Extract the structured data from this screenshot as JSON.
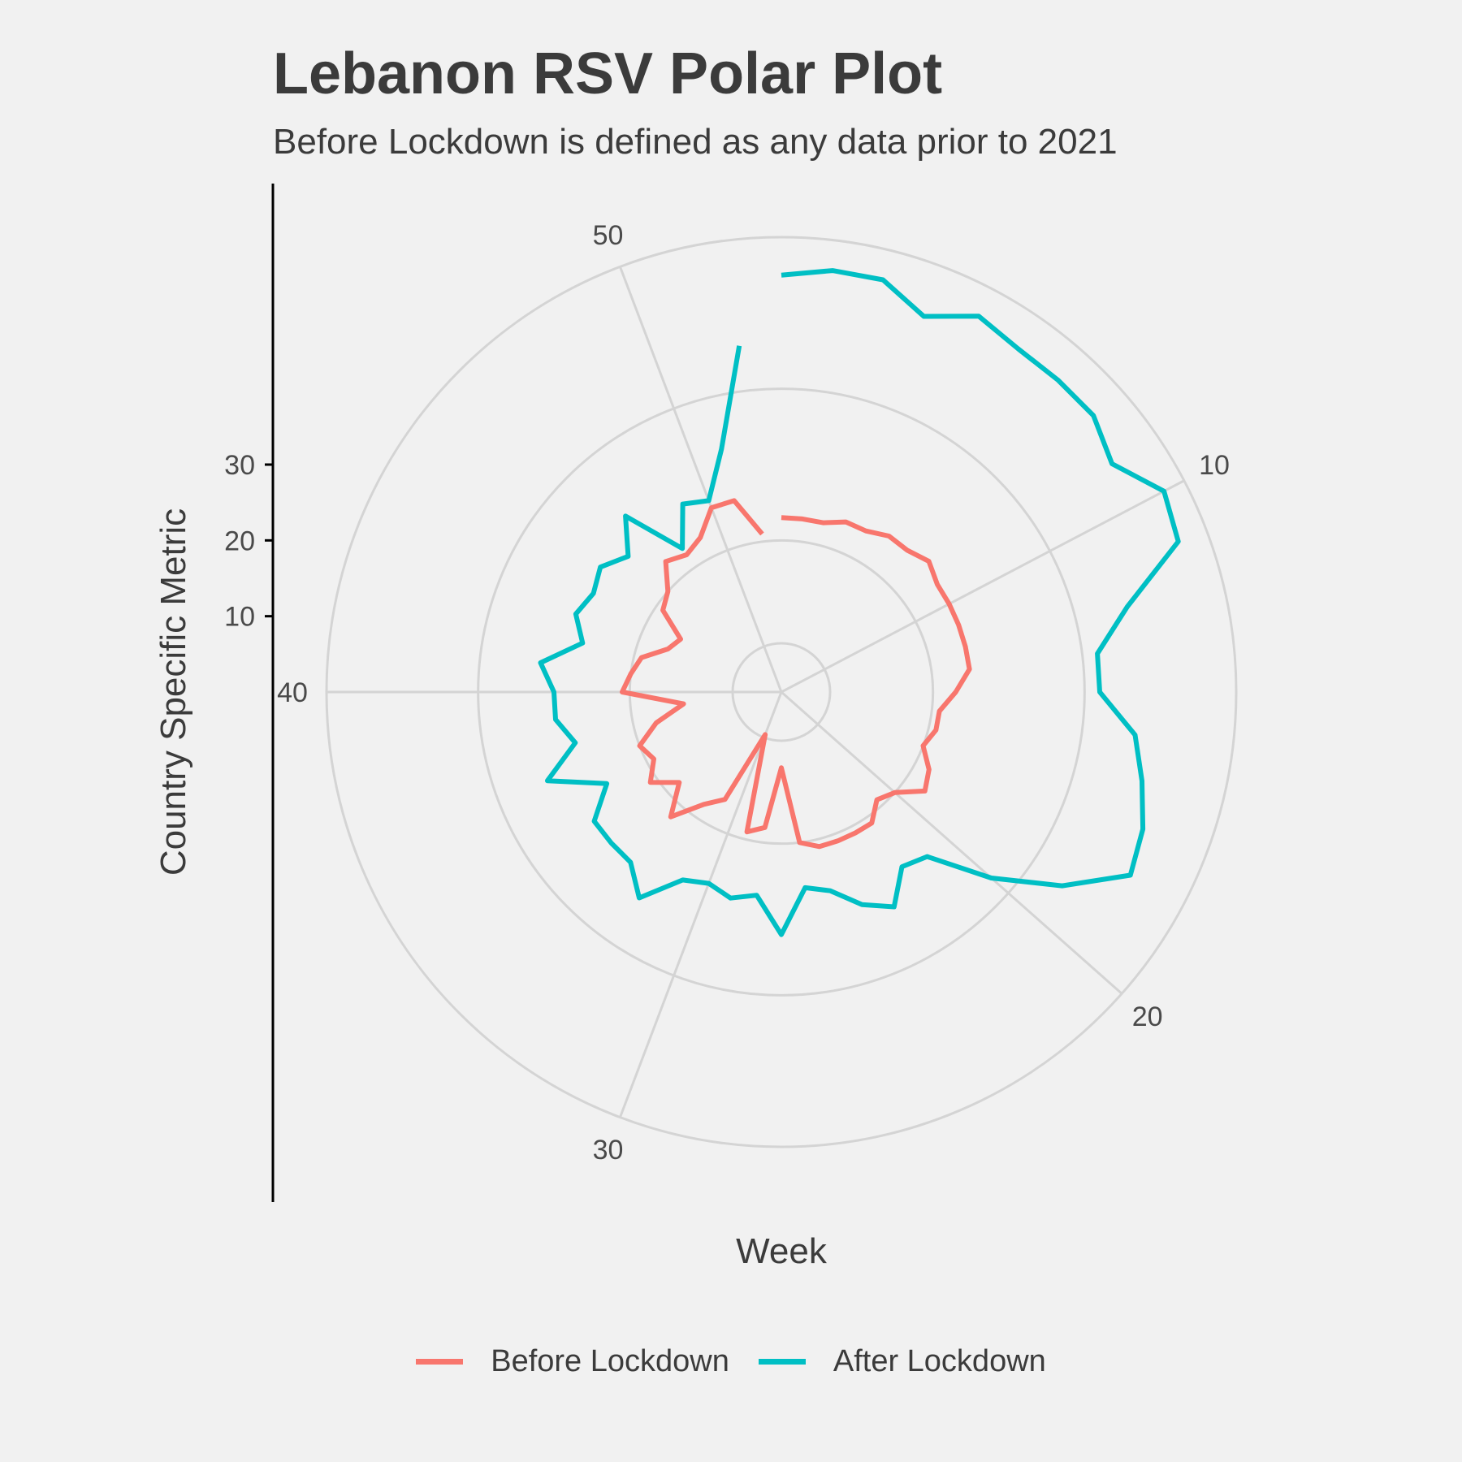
{
  "chart_data": {
    "type": "line",
    "coord": "polar",
    "title": "Lebanon RSV Polar Plot",
    "subtitle": "Before Lockdown is defined as any data prior to 2021",
    "xlabel": "Week",
    "ylabel": "Country Specific Metric",
    "theta_range": [
      1,
      53
    ],
    "theta_ticks": [
      10,
      20,
      30,
      40,
      50
    ],
    "r_ticks": [
      10,
      20,
      30
    ],
    "r_grid": [
      0,
      20,
      40,
      60
    ],
    "grid": true,
    "legend_position": "bottom",
    "series": [
      {
        "name": "Before Lockdown",
        "color": "#f8766d",
        "x": [
          1,
          2,
          3,
          4,
          5,
          6,
          7,
          8,
          9,
          10,
          11,
          12,
          13,
          14,
          15,
          16,
          17,
          18,
          19,
          20,
          21,
          22,
          23,
          24,
          25,
          26,
          27,
          28,
          29,
          30,
          31,
          32,
          33,
          34,
          35,
          36,
          37,
          38,
          39,
          40,
          41,
          42,
          43,
          44,
          45,
          46,
          47,
          48,
          49,
          50,
          51,
          52
        ],
        "y": [
          23,
          23,
          23,
          24,
          24,
          25,
          25,
          26,
          25,
          25,
          25,
          25,
          25,
          23,
          21,
          21,
          20,
          22,
          23,
          20,
          19,
          21,
          21,
          21,
          21,
          20,
          10,
          18,
          19,
          6,
          16,
          18,
          22,
          18,
          21,
          19,
          20,
          17,
          13,
          21,
          20,
          19,
          16,
          15,
          19,
          20,
          23,
          22,
          23,
          26,
          26,
          21
        ]
      },
      {
        "name": "After Lockdown",
        "color": "#00bfc4",
        "x": [
          1,
          2,
          3,
          4,
          5,
          6,
          7,
          8,
          9,
          10,
          11,
          12,
          13,
          14,
          15,
          16,
          17,
          18,
          19,
          20,
          21,
          22,
          23,
          24,
          25,
          26,
          27,
          28,
          29,
          30,
          31,
          32,
          33,
          34,
          35,
          36,
          37,
          38,
          39,
          40,
          41,
          42,
          43,
          44,
          45,
          46,
          47,
          48,
          49,
          50,
          51,
          52
        ],
        "y": [
          55,
          56,
          56,
          53,
          56,
          55,
          55,
          55,
          53,
          57,
          56,
          47,
          42,
          42,
          47,
          49,
          51,
          52,
          45,
          37,
          29,
          28,
          32,
          30,
          27,
          26,
          32,
          27,
          28,
          27,
          28,
          33,
          30,
          30,
          30,
          26,
          33,
          28,
          30,
          30,
          32,
          27,
          29,
          28,
          29,
          27,
          31,
          23,
          28,
          27,
          33,
          46
        ]
      }
    ]
  }
}
